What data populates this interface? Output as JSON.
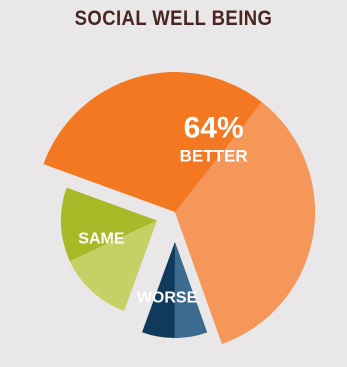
{
  "chart_data": {
    "type": "pie",
    "title": "SOCIAL WELL BEING",
    "slices": [
      {
        "label": "BETTER",
        "value": 64,
        "display": "64%",
        "color": "#f47721",
        "highlight": "#f6975a"
      },
      {
        "label": "WORSE",
        "value": 11,
        "display": "",
        "color": "#0f3a5c",
        "highlight": "#3d6a8f"
      },
      {
        "label": "SAME",
        "value": 25,
        "display": "",
        "color": "#a8b928",
        "highlight": "#c4d164"
      }
    ]
  }
}
